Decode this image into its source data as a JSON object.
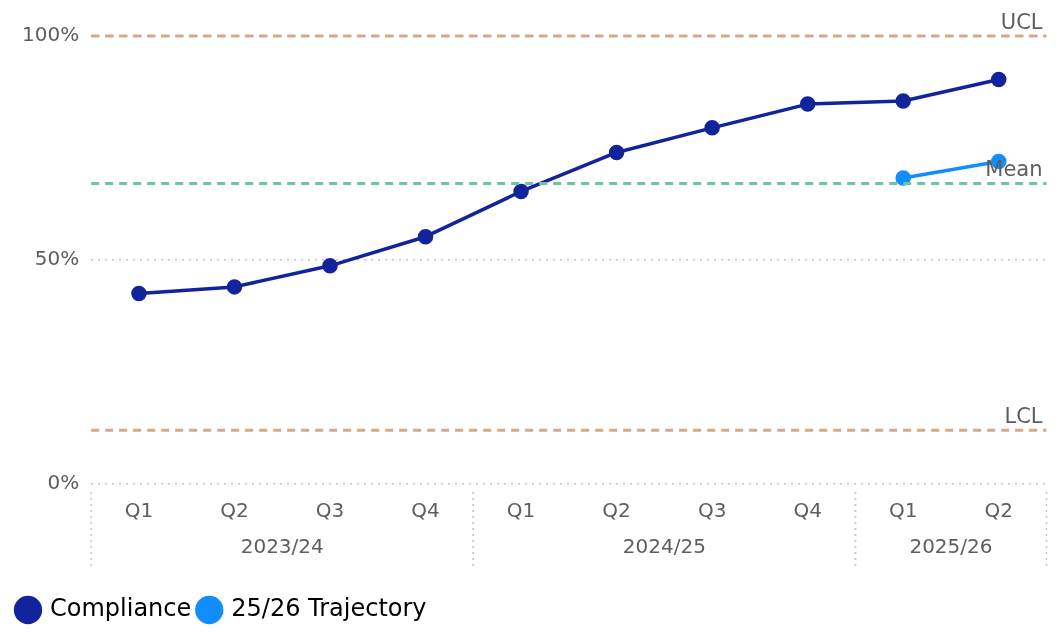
{
  "chart_data": {
    "type": "line",
    "categories": [
      "Q1",
      "Q2",
      "Q3",
      "Q4",
      "Q1",
      "Q2",
      "Q3",
      "Q4",
      "Q1",
      "Q2"
    ],
    "series": [
      {
        "name": "Compliance",
        "color": "#12239e",
        "values": [
          42.5,
          44,
          48.7,
          55.2,
          65.3,
          74,
          79.5,
          84.8,
          85.5,
          90.3
        ]
      },
      {
        "name": "25/26 Trajectory",
        "color": "#118dff",
        "values": [
          null,
          null,
          null,
          null,
          null,
          null,
          null,
          null,
          68.3,
          72
        ]
      }
    ],
    "ylim": [
      0,
      100
    ],
    "yticks": [
      {
        "value": 0,
        "label": "0%"
      },
      {
        "value": 50,
        "label": "50%"
      },
      {
        "value": 100,
        "label": "100%"
      }
    ],
    "ref_lines": [
      {
        "axis": "y",
        "value": 100,
        "label": "UCL",
        "color": "#d9a68a",
        "line_style": "dashed"
      },
      {
        "axis": "y",
        "value": 67.1,
        "label": "Mean",
        "color": "#6cc4a0",
        "line_style": "dashed"
      },
      {
        "axis": "y",
        "value": 12,
        "label": "LCL",
        "color": "#d9a68a",
        "line_style": "dashed"
      }
    ],
    "annotations": [
      "2023/24",
      "2024/25",
      "2025/26"
    ],
    "grid": "y",
    "legend": "bottom left",
    "marker": "circle",
    "line_style": "solid"
  }
}
